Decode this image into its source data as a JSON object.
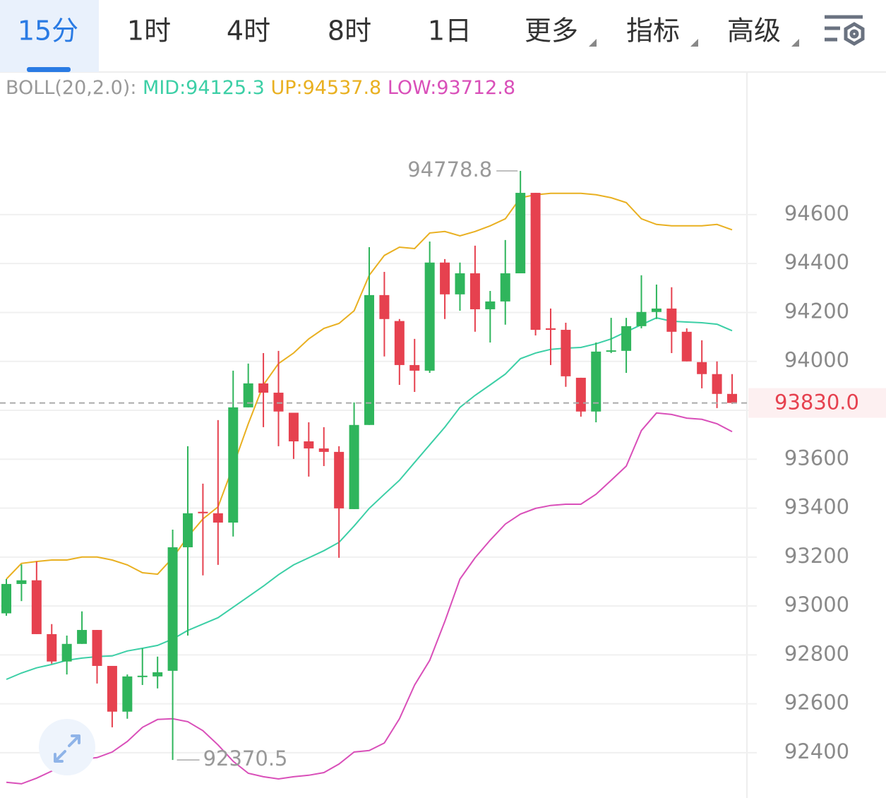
{
  "tabs": [
    "15分",
    "1时",
    "4时",
    "8时",
    "1日",
    "更多",
    "指标",
    "高级"
  ],
  "selected_tab": 0,
  "chart_data": {
    "type": "candlestick",
    "indicator": "BOLL(20,2.0):",
    "open": [
      92970,
      93090,
      93105,
      92885,
      92773,
      92845,
      92902,
      92755,
      92568,
      92710,
      92712,
      92735,
      93240,
      93385,
      93379,
      93341,
      93812,
      93910,
      93872,
      93790,
      93673,
      93644,
      93630,
      93396,
      93740,
      94271,
      94165,
      93985,
      93962,
      94404,
      94274,
      94360,
      94213,
      94245,
      94360,
      94689,
      94135,
      94129,
      93933,
      93795,
      94040,
      94043,
      94144,
      94202,
      94216,
      94121,
      93997,
      93948,
      93867
    ],
    "high": [
      93110,
      93170,
      93182,
      92926,
      92879,
      92978,
      92902,
      92755,
      92720,
      92827,
      92793,
      93312,
      93653,
      93500,
      93760,
      93962,
      93991,
      94034,
      94043,
      93790,
      93751,
      93731,
      93653,
      93832,
      94467,
      94366,
      94173,
      94092,
      94490,
      94418,
      94404,
      94473,
      94288,
      94496,
      94778.8,
      94689,
      94216,
      94158,
      93933,
      94077,
      94178,
      94178,
      94352,
      94314,
      94303,
      94135,
      94086,
      94000,
      93948
    ],
    "low": [
      92960,
      93020,
      92885,
      92764,
      92720,
      92845,
      92683,
      92504,
      92539,
      92677,
      92663,
      92370.5,
      92879,
      93125,
      93168,
      93284,
      93812,
      93731,
      93653,
      93601,
      93529,
      93572,
      93197,
      93396,
      93740,
      94020,
      93904,
      93875,
      93953,
      94173,
      94207,
      94121,
      94077,
      94150,
      94360,
      94106,
      93985,
      93896,
      93774,
      93751,
      94034,
      93953,
      94135,
      94173,
      94034,
      94000,
      93890,
      93809,
      93826
    ],
    "close": [
      93090,
      93105,
      92885,
      92773,
      92845,
      92902,
      92755,
      92568,
      92712,
      92715,
      92729,
      93240,
      93379,
      93379,
      93341,
      93812,
      93910,
      93872,
      93795,
      93673,
      93644,
      93630,
      93399,
      93740,
      94271,
      94173,
      93985,
      93962,
      94404,
      94274,
      94360,
      94213,
      94245,
      94360,
      94689,
      94129,
      94129,
      93939,
      93795,
      94040,
      94045,
      94144,
      94202,
      94216,
      94121,
      94000,
      93948,
      93867,
      93830
    ],
    "up_color": "#2fb55c",
    "down_color": "#e6414f",
    "series": [
      {
        "name": "MID:94125.3",
        "color": "#3ccfa6",
        "values": [
          92700,
          92726,
          92747,
          92761,
          92778,
          92787,
          92793,
          92796,
          92816,
          92827,
          92839,
          92865,
          92900,
          92926,
          92952,
          92995,
          93038,
          93081,
          93128,
          93168,
          93197,
          93226,
          93260,
          93327,
          93399,
          93457,
          93514,
          93587,
          93659,
          93731,
          93812,
          93861,
          93904,
          93948,
          94011,
          94034,
          94049,
          94054,
          94057,
          94072,
          94092,
          94121,
          94150,
          94178,
          94164,
          94161,
          94158,
          94152,
          94125.3
        ]
      },
      {
        "name": "UP:94537.8",
        "color": "#e9b021",
        "values": [
          93110,
          93174,
          93182,
          93188,
          93188,
          93200,
          93200,
          93188,
          93168,
          93136,
          93130,
          93197,
          93283,
          93356,
          93405,
          93572,
          93745,
          93904,
          93991,
          94034,
          94092,
          94135,
          94155,
          94207,
          94352,
          94433,
          94467,
          94461,
          94525,
          94531,
          94513,
          94531,
          94554,
          94583,
          94669,
          94681,
          94687,
          94687,
          94687,
          94681,
          94669,
          94649,
          94583,
          94560,
          94554,
          94554,
          94554,
          94560,
          94537.8
        ]
      },
      {
        "name": "LOW:93712.8",
        "color": "#d94fb9",
        "values": [
          92279,
          92273,
          92296,
          92325,
          92354,
          92374,
          92380,
          92403,
          92446,
          92504,
          92536,
          92539,
          92527,
          92490,
          92432,
          92365,
          92316,
          92302,
          92293,
          92302,
          92308,
          92319,
          92354,
          92403,
          92409,
          92440,
          92539,
          92677,
          92778,
          92937,
          93110,
          93197,
          93269,
          93335,
          93376,
          93399,
          93411,
          93416,
          93416,
          93457,
          93514,
          93572,
          93717,
          93789,
          93783,
          93768,
          93763,
          93745,
          93712.8
        ]
      }
    ],
    "max_label": 94778.8,
    "min_label": 92370.5,
    "last_price": {
      "value": 93830,
      "label": "93830.0"
    },
    "ylim": [
      92215,
      95180
    ],
    "yticks": [
      92400,
      92600,
      92800,
      93000,
      93200,
      93400,
      93600,
      93800,
      94000,
      94200,
      94400,
      94600
    ],
    "grid": true
  }
}
